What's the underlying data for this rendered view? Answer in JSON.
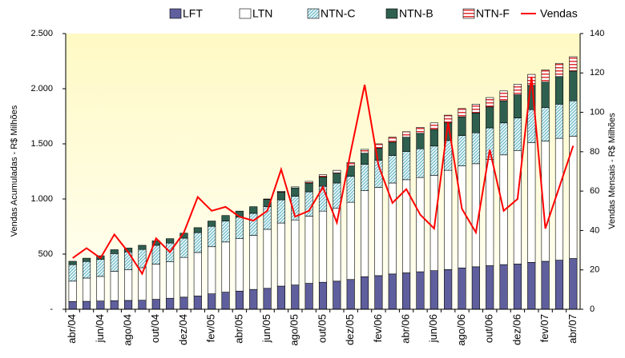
{
  "chart_data": {
    "type": "bar",
    "stacked": true,
    "categories": [
      "abr/04",
      null,
      "jun/04",
      null,
      "ago/04",
      null,
      "out/04",
      null,
      "dez/04",
      null,
      "fev/05",
      null,
      "abr/05",
      null,
      "jun/05",
      null,
      "ago/05",
      null,
      "out/05",
      null,
      "dez/05",
      null,
      "fev/06",
      null,
      "abr/06",
      null,
      "jun/06",
      null,
      "ago/06",
      null,
      "out/06",
      null,
      "dez/06",
      null,
      "fev/07",
      null,
      "abr/07"
    ],
    "series": [
      {
        "name": "LFT",
        "color": "#5f5f9e",
        "values": [
          70,
          72,
          75,
          78,
          80,
          82,
          90,
          100,
          110,
          120,
          140,
          155,
          165,
          180,
          190,
          210,
          220,
          235,
          245,
          255,
          270,
          295,
          305,
          320,
          330,
          340,
          350,
          360,
          375,
          385,
          395,
          405,
          410,
          425,
          435,
          445,
          460
        ]
      },
      {
        "name": "LTN",
        "color": "#ffffff",
        "values": [
          185,
          211,
          223,
          267,
          280,
          295,
          320,
          330,
          360,
          395,
          427,
          455,
          475,
          490,
          535,
          572,
          590,
          610,
          645,
          660,
          700,
          780,
          800,
          825,
          845,
          855,
          865,
          900,
          925,
          935,
          965,
          995,
          1030,
          1085,
          1090,
          1105,
          1110
        ]
      },
      {
        "name": "NTN-C",
        "color": "#4aa8b8",
        "pattern": "diagonal",
        "values": [
          150,
          150,
          155,
          160,
          160,
          165,
          170,
          170,
          175,
          180,
          185,
          190,
          195,
          200,
          205,
          210,
          215,
          220,
          225,
          230,
          235,
          240,
          245,
          250,
          255,
          260,
          265,
          270,
          275,
          280,
          285,
          290,
          295,
          300,
          305,
          310,
          320
        ]
      },
      {
        "name": "NTN-B",
        "color": "#2f5f4f",
        "values": [
          30,
          30,
          32,
          35,
          35,
          38,
          40,
          40,
          45,
          45,
          48,
          50,
          55,
          60,
          65,
          70,
          75,
          80,
          85,
          90,
          95,
          100,
          110,
          120,
          130,
          140,
          150,
          160,
          170,
          180,
          190,
          200,
          210,
          220,
          230,
          250,
          270
        ]
      },
      {
        "name": "NTN-F",
        "color": "#e03030",
        "pattern": "horizontal",
        "values": [
          0,
          0,
          0,
          0,
          0,
          0,
          0,
          0,
          0,
          0,
          0,
          0,
          0,
          0,
          5,
          8,
          10,
          15,
          20,
          25,
          30,
          35,
          40,
          45,
          50,
          55,
          60,
          70,
          75,
          80,
          85,
          90,
          95,
          100,
          110,
          120,
          130
        ]
      },
      {
        "name": "Vendas",
        "color": "#ff0000",
        "type": "line",
        "axis": "y2",
        "values": [
          26,
          31,
          26,
          38,
          29,
          18,
          36,
          29,
          39,
          57,
          50,
          52,
          47,
          45,
          50,
          71,
          47,
          50,
          62,
          44,
          80,
          114,
          73,
          54,
          61,
          48,
          41,
          95,
          51,
          39,
          81,
          50,
          56,
          118,
          41,
          62,
          83
        ]
      }
    ],
    "y_label": "Vendas Acumuladas - R$ Milhões",
    "y2_label": "Vendas Mensais - R$ Milhões",
    "ylim": [
      0,
      2500
    ],
    "yticks": [
      {
        "value": 0,
        "label": "-"
      },
      500,
      {
        "value": 1000,
        "label": "1.000"
      },
      {
        "value": 1500,
        "label": "1.500"
      },
      {
        "value": 2000,
        "label": "2.000"
      },
      {
        "value": 2500,
        "label": "2.500"
      }
    ],
    "y2lim": [
      0,
      140
    ],
    "y2ticks": [
      0,
      20,
      40,
      60,
      80,
      100,
      120,
      140
    ],
    "legend": "top"
  }
}
